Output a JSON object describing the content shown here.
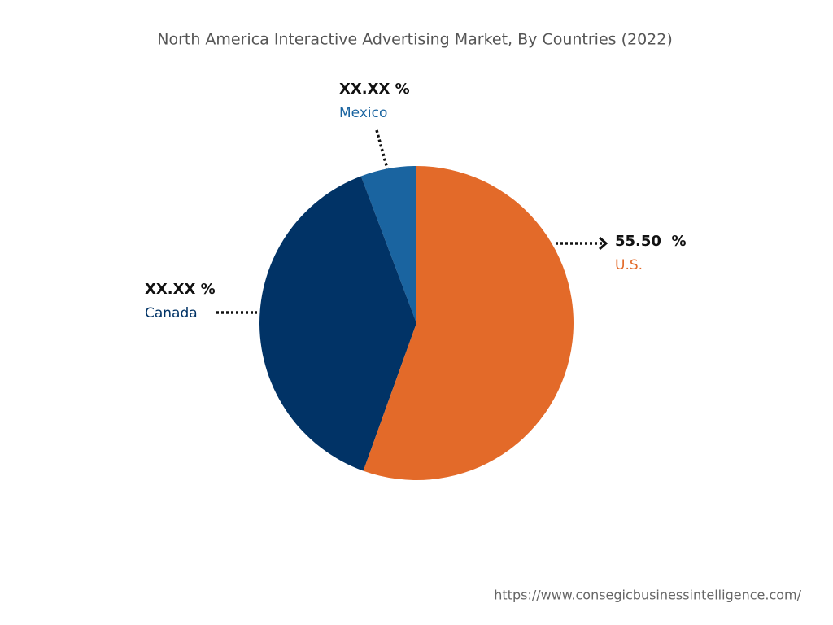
{
  "chart_data": {
    "type": "pie",
    "title": "North America Interactive Advertising Market, By Countries (2022)",
    "categories": [
      "U.S.",
      "Canada",
      "Mexico"
    ],
    "values": [
      55.5,
      38.75,
      5.75
    ],
    "value_labels": [
      "55.50  %",
      "XX.XX %",
      "XX.XX %"
    ],
    "colors": [
      "#e36a29",
      "#013366",
      "#1a64a0"
    ],
    "source": "https://www.consegicbusinessintelligence.com/"
  }
}
